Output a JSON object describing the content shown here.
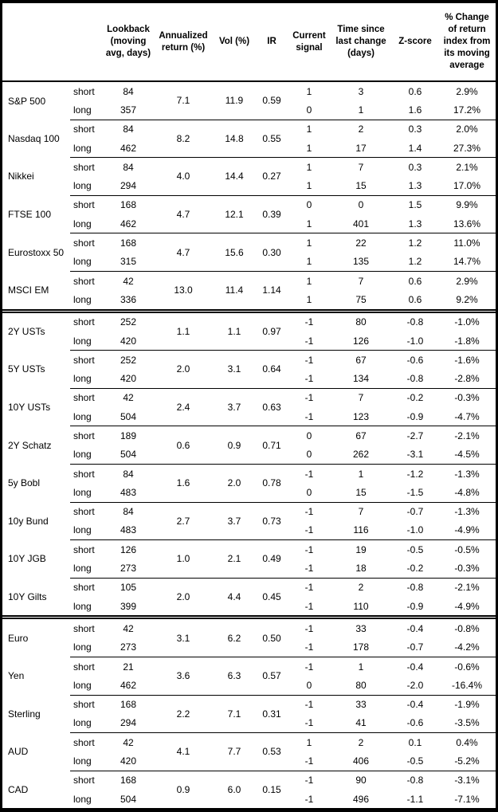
{
  "table": {
    "headers": {
      "asset": "",
      "leg": "",
      "lookback": "Lookback (moving avg, days)",
      "annualized_return": "Annualized return (%)",
      "vol": "Vol (%)",
      "ir": "IR",
      "current_signal": "Current signal",
      "time_since": "Time since last change (days)",
      "z_score": "Z-score",
      "pct_change": "% Change of return index from its moving average"
    },
    "leg_labels": {
      "short": "short",
      "long": "long"
    },
    "groups": [
      {
        "name": "S&P 500",
        "section_start": false,
        "annualized_return": "7.1",
        "vol": "11.9",
        "ir": "0.59",
        "short": {
          "lookback": "84",
          "signal": "1",
          "time_since": "3",
          "z_score": "0.6",
          "pct_change": "2.9%"
        },
        "long": {
          "lookback": "357",
          "signal": "0",
          "time_since": "1",
          "z_score": "1.6",
          "pct_change": "17.2%"
        }
      },
      {
        "name": "Nasdaq 100",
        "section_start": false,
        "annualized_return": "8.2",
        "vol": "14.8",
        "ir": "0.55",
        "short": {
          "lookback": "84",
          "signal": "1",
          "time_since": "2",
          "z_score": "0.3",
          "pct_change": "2.0%"
        },
        "long": {
          "lookback": "462",
          "signal": "1",
          "time_since": "17",
          "z_score": "1.4",
          "pct_change": "27.3%"
        }
      },
      {
        "name": "Nikkei",
        "section_start": false,
        "annualized_return": "4.0",
        "vol": "14.4",
        "ir": "0.27",
        "short": {
          "lookback": "84",
          "signal": "1",
          "time_since": "7",
          "z_score": "0.3",
          "pct_change": "2.1%"
        },
        "long": {
          "lookback": "294",
          "signal": "1",
          "time_since": "15",
          "z_score": "1.3",
          "pct_change": "17.0%"
        }
      },
      {
        "name": "FTSE 100",
        "section_start": false,
        "annualized_return": "4.7",
        "vol": "12.1",
        "ir": "0.39",
        "short": {
          "lookback": "168",
          "signal": "0",
          "time_since": "0",
          "z_score": "1.5",
          "pct_change": "9.9%"
        },
        "long": {
          "lookback": "462",
          "signal": "1",
          "time_since": "401",
          "z_score": "1.3",
          "pct_change": "13.6%"
        }
      },
      {
        "name": "Eurostoxx 50",
        "section_start": false,
        "annualized_return": "4.7",
        "vol": "15.6",
        "ir": "0.30",
        "short": {
          "lookback": "168",
          "signal": "1",
          "time_since": "22",
          "z_score": "1.2",
          "pct_change": "11.0%"
        },
        "long": {
          "lookback": "315",
          "signal": "1",
          "time_since": "135",
          "z_score": "1.2",
          "pct_change": "14.7%"
        }
      },
      {
        "name": "MSCI EM",
        "section_start": false,
        "annualized_return": "13.0",
        "vol": "11.4",
        "ir": "1.14",
        "short": {
          "lookback": "42",
          "signal": "1",
          "time_since": "7",
          "z_score": "0.6",
          "pct_change": "2.9%"
        },
        "long": {
          "lookback": "336",
          "signal": "1",
          "time_since": "75",
          "z_score": "0.6",
          "pct_change": "9.2%"
        }
      },
      {
        "name": "2Y USTs",
        "section_start": true,
        "annualized_return": "1.1",
        "vol": "1.1",
        "ir": "0.97",
        "short": {
          "lookback": "252",
          "signal": "-1",
          "time_since": "80",
          "z_score": "-0.8",
          "pct_change": "-1.0%"
        },
        "long": {
          "lookback": "420",
          "signal": "-1",
          "time_since": "126",
          "z_score": "-1.0",
          "pct_change": "-1.8%"
        }
      },
      {
        "name": "5Y USTs",
        "section_start": false,
        "annualized_return": "2.0",
        "vol": "3.1",
        "ir": "0.64",
        "short": {
          "lookback": "252",
          "signal": "-1",
          "time_since": "67",
          "z_score": "-0.6",
          "pct_change": "-1.6%"
        },
        "long": {
          "lookback": "420",
          "signal": "-1",
          "time_since": "134",
          "z_score": "-0.8",
          "pct_change": "-2.8%"
        }
      },
      {
        "name": "10Y USTs",
        "section_start": false,
        "annualized_return": "2.4",
        "vol": "3.7",
        "ir": "0.63",
        "short": {
          "lookback": "42",
          "signal": "-1",
          "time_since": "7",
          "z_score": "-0.2",
          "pct_change": "-0.3%"
        },
        "long": {
          "lookback": "504",
          "signal": "-1",
          "time_since": "123",
          "z_score": "-0.9",
          "pct_change": "-4.7%"
        }
      },
      {
        "name": "2Y Schatz",
        "section_start": false,
        "annualized_return": "0.6",
        "vol": "0.9",
        "ir": "0.71",
        "short": {
          "lookback": "189",
          "signal": "0",
          "time_since": "67",
          "z_score": "-2.7",
          "pct_change": "-2.1%"
        },
        "long": {
          "lookback": "504",
          "signal": "0",
          "time_since": "262",
          "z_score": "-3.1",
          "pct_change": "-4.5%"
        }
      },
      {
        "name": "5y Bobl",
        "section_start": false,
        "annualized_return": "1.6",
        "vol": "2.0",
        "ir": "0.78",
        "short": {
          "lookback": "84",
          "signal": "-1",
          "time_since": "1",
          "z_score": "-1.2",
          "pct_change": "-1.3%"
        },
        "long": {
          "lookback": "483",
          "signal": "0",
          "time_since": "15",
          "z_score": "-1.5",
          "pct_change": "-4.8%"
        }
      },
      {
        "name": "10y Bund",
        "section_start": false,
        "annualized_return": "2.7",
        "vol": "3.7",
        "ir": "0.73",
        "short": {
          "lookback": "84",
          "signal": "-1",
          "time_since": "7",
          "z_score": "-0.7",
          "pct_change": "-1.3%"
        },
        "long": {
          "lookback": "483",
          "signal": "-1",
          "time_since": "116",
          "z_score": "-1.0",
          "pct_change": "-4.9%"
        }
      },
      {
        "name": "10Y JGB",
        "section_start": false,
        "annualized_return": "1.0",
        "vol": "2.1",
        "ir": "0.49",
        "short": {
          "lookback": "126",
          "signal": "-1",
          "time_since": "19",
          "z_score": "-0.5",
          "pct_change": "-0.5%"
        },
        "long": {
          "lookback": "273",
          "signal": "-1",
          "time_since": "18",
          "z_score": "-0.2",
          "pct_change": "-0.3%"
        }
      },
      {
        "name": "10Y Gilts",
        "section_start": false,
        "annualized_return": "2.0",
        "vol": "4.4",
        "ir": "0.45",
        "short": {
          "lookback": "105",
          "signal": "-1",
          "time_since": "2",
          "z_score": "-0.8",
          "pct_change": "-2.1%"
        },
        "long": {
          "lookback": "399",
          "signal": "-1",
          "time_since": "110",
          "z_score": "-0.9",
          "pct_change": "-4.9%"
        }
      },
      {
        "name": "Euro",
        "section_start": true,
        "annualized_return": "3.1",
        "vol": "6.2",
        "ir": "0.50",
        "short": {
          "lookback": "42",
          "signal": "-1",
          "time_since": "33",
          "z_score": "-0.4",
          "pct_change": "-0.8%"
        },
        "long": {
          "lookback": "273",
          "signal": "-1",
          "time_since": "178",
          "z_score": "-0.7",
          "pct_change": "-4.2%"
        }
      },
      {
        "name": "Yen",
        "section_start": false,
        "annualized_return": "3.6",
        "vol": "6.3",
        "ir": "0.57",
        "short": {
          "lookback": "21",
          "signal": "-1",
          "time_since": "1",
          "z_score": "-0.4",
          "pct_change": "-0.6%"
        },
        "long": {
          "lookback": "462",
          "signal": "0",
          "time_since": "80",
          "z_score": "-2.0",
          "pct_change": "-16.4%"
        }
      },
      {
        "name": "Sterling",
        "section_start": false,
        "annualized_return": "2.2",
        "vol": "7.1",
        "ir": "0.31",
        "short": {
          "lookback": "168",
          "signal": "-1",
          "time_since": "33",
          "z_score": "-0.4",
          "pct_change": "-1.9%"
        },
        "long": {
          "lookback": "294",
          "signal": "-1",
          "time_since": "41",
          "z_score": "-0.6",
          "pct_change": "-3.5%"
        }
      },
      {
        "name": "AUD",
        "section_start": false,
        "annualized_return": "4.1",
        "vol": "7.7",
        "ir": "0.53",
        "short": {
          "lookback": "42",
          "signal": "1",
          "time_since": "2",
          "z_score": "0.1",
          "pct_change": "0.4%"
        },
        "long": {
          "lookback": "420",
          "signal": "-1",
          "time_since": "406",
          "z_score": "-0.5",
          "pct_change": "-5.2%"
        }
      },
      {
        "name": "CAD",
        "section_start": false,
        "annualized_return": "0.9",
        "vol": "6.0",
        "ir": "0.15",
        "short": {
          "lookback": "168",
          "signal": "-1",
          "time_since": "90",
          "z_score": "-0.8",
          "pct_change": "-3.1%"
        },
        "long": {
          "lookback": "504",
          "signal": "-1",
          "time_since": "496",
          "z_score": "-1.1",
          "pct_change": "-7.1%"
        }
      }
    ]
  },
  "colors": {
    "border": "#000000",
    "text": "#000000",
    "background": "#ffffff"
  }
}
